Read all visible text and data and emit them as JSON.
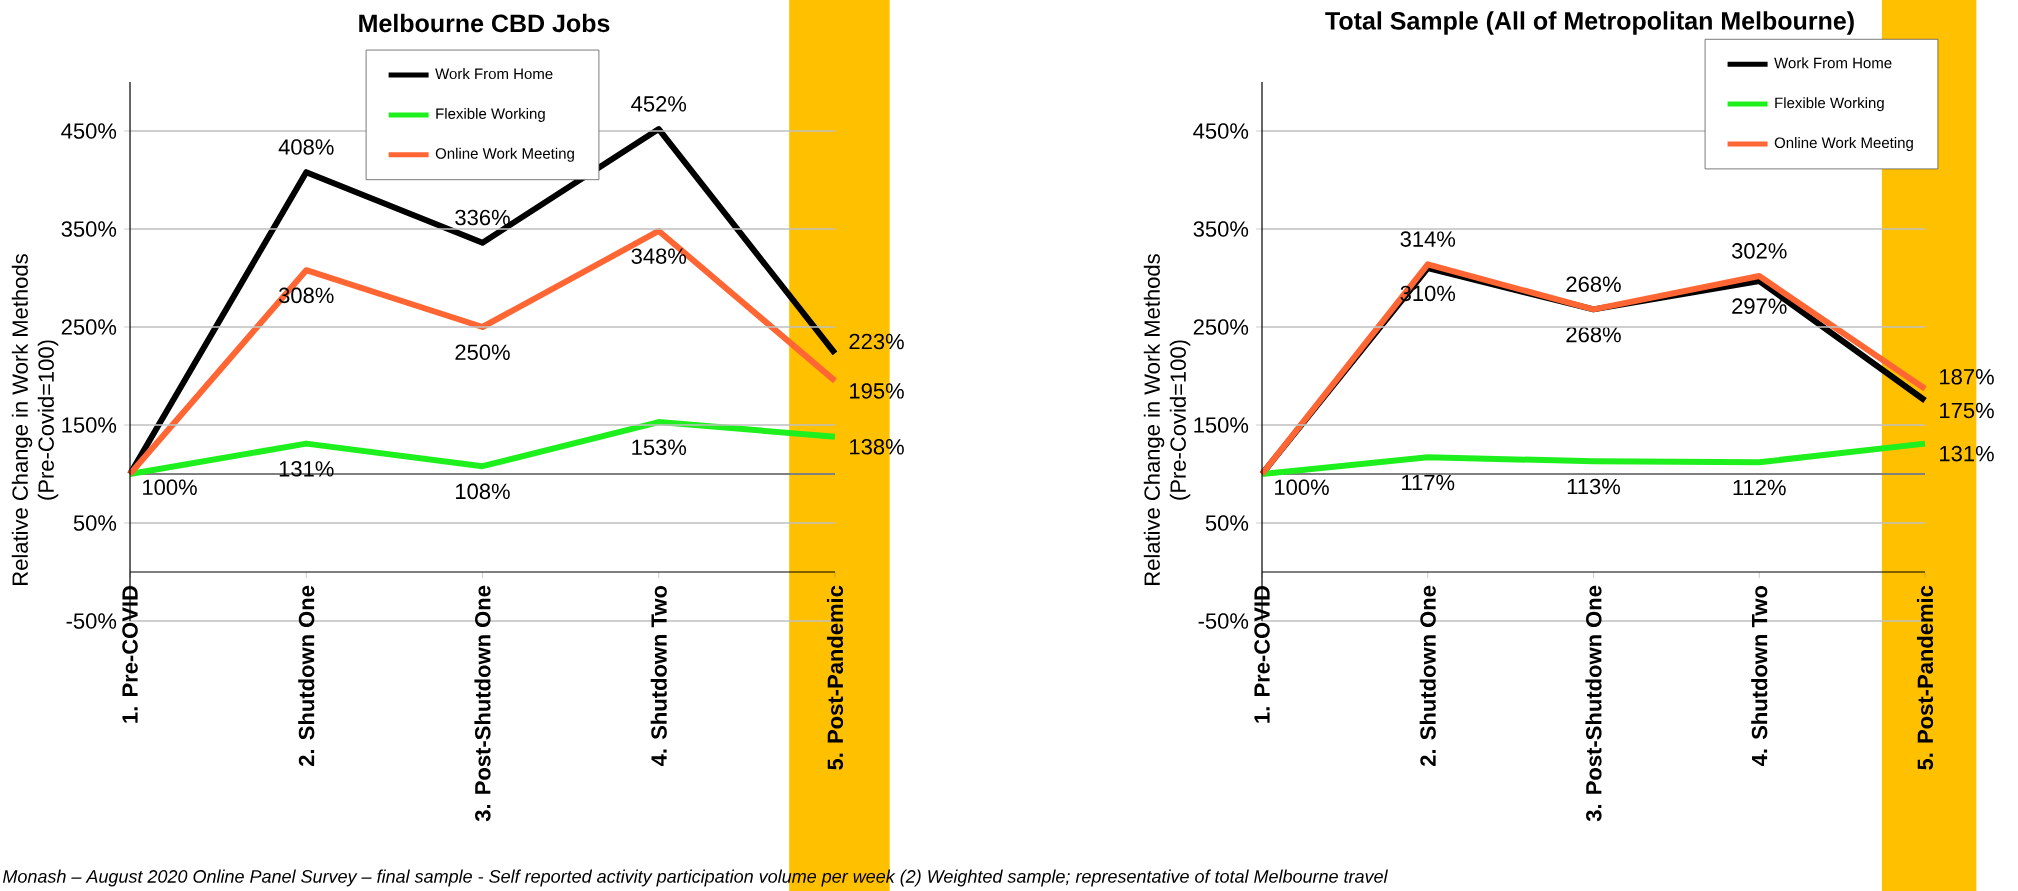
{
  "chart_data": [
    {
      "type": "line",
      "title": "Melbourne CBD Jobs",
      "ylabel": "Relative Change in Work Methods (Pre-Covid=100)",
      "categories": [
        "1. Pre-COVID",
        "2. Shutdown One",
        "3. Post-Shutdown One",
        "4. Shutdown Two",
        "5. Post-Pandemic"
      ],
      "series": [
        {
          "name": "Work From Home",
          "color": "#000000",
          "values": [
            100,
            408,
            336,
            452,
            223
          ],
          "value_labels": [
            null,
            "408%",
            "336%",
            "452%",
            "223%"
          ]
        },
        {
          "name": "Flexible Working",
          "color": "#1ef01e",
          "values": [
            100,
            131,
            108,
            153,
            138
          ],
          "value_labels": [
            "100%",
            "131%",
            "108%",
            "153%",
            "138%"
          ]
        },
        {
          "name": "Online Work Meeting",
          "color": "#ff6633",
          "values": [
            100,
            308,
            250,
            348,
            195
          ],
          "value_labels": [
            null,
            "308%",
            "250%",
            "348%",
            "195%"
          ]
        }
      ],
      "ylim": [
        -50,
        500
      ],
      "yticks": [
        {
          "value": -50,
          "label": "-50%"
        },
        {
          "value": 50,
          "label": "50%"
        },
        {
          "value": 150,
          "label": "150%"
        },
        {
          "value": 250,
          "label": "250%"
        },
        {
          "value": 350,
          "label": "350%"
        },
        {
          "value": 450,
          "label": "450%"
        }
      ],
      "grid": "y",
      "legend": "top",
      "ref_lines": [
        {
          "axis": "y",
          "value": 100,
          "color": "#808080"
        }
      ],
      "bands": [
        {
          "axis": "x",
          "from": "5. Post-Pandemic",
          "to": "5. Post-Pandemic",
          "color": "#ffc000"
        }
      ],
      "annotations": [
        "Monash – August 2020 Online Panel Survey – final sample - Self reported activity participation volume per week  (2) Weighted sample; representative of total Melbourne travel"
      ]
    },
    {
      "type": "line",
      "title": "Total Sample (All of Metropolitan Melbourne)",
      "ylabel": "Relative Change in Work Methods (Pre-Covid=100)",
      "categories": [
        "1. Pre-COVID",
        "2. Shutdown One",
        "3. Post-Shutdown One",
        "4. Shutdown Two",
        "5. Post-Pandemic"
      ],
      "series": [
        {
          "name": "Work From Home",
          "color": "#000000",
          "values": [
            100,
            310,
            268,
            297,
            175
          ],
          "value_labels": [
            null,
            "310%",
            "268%",
            "297%",
            "175%"
          ]
        },
        {
          "name": "Flexible Working",
          "color": "#1ef01e",
          "values": [
            100,
            117,
            113,
            112,
            131
          ],
          "value_labels": [
            "100%",
            "117%",
            "113%",
            "112%",
            "131%"
          ]
        },
        {
          "name": "Online Work Meeting",
          "color": "#ff6633",
          "values": [
            100,
            314,
            268,
            302,
            187
          ],
          "value_labels": [
            null,
            "314%",
            "268%",
            "302%",
            "187%"
          ]
        }
      ],
      "ylim": [
        -50,
        500
      ],
      "yticks": [
        {
          "value": -50,
          "label": "-50%"
        },
        {
          "value": 50,
          "label": "50%"
        },
        {
          "value": 150,
          "label": "150%"
        },
        {
          "value": 250,
          "label": "250%"
        },
        {
          "value": 350,
          "label": "350%"
        },
        {
          "value": 450,
          "label": "450%"
        }
      ],
      "grid": "y",
      "legend": "top right",
      "ref_lines": [
        {
          "axis": "y",
          "value": 100,
          "color": "#808080"
        }
      ],
      "bands": [
        {
          "axis": "x",
          "from": "5. Post-Pandemic",
          "to": "5. Post-Pandemic",
          "color": "#ffc000"
        }
      ]
    }
  ]
}
